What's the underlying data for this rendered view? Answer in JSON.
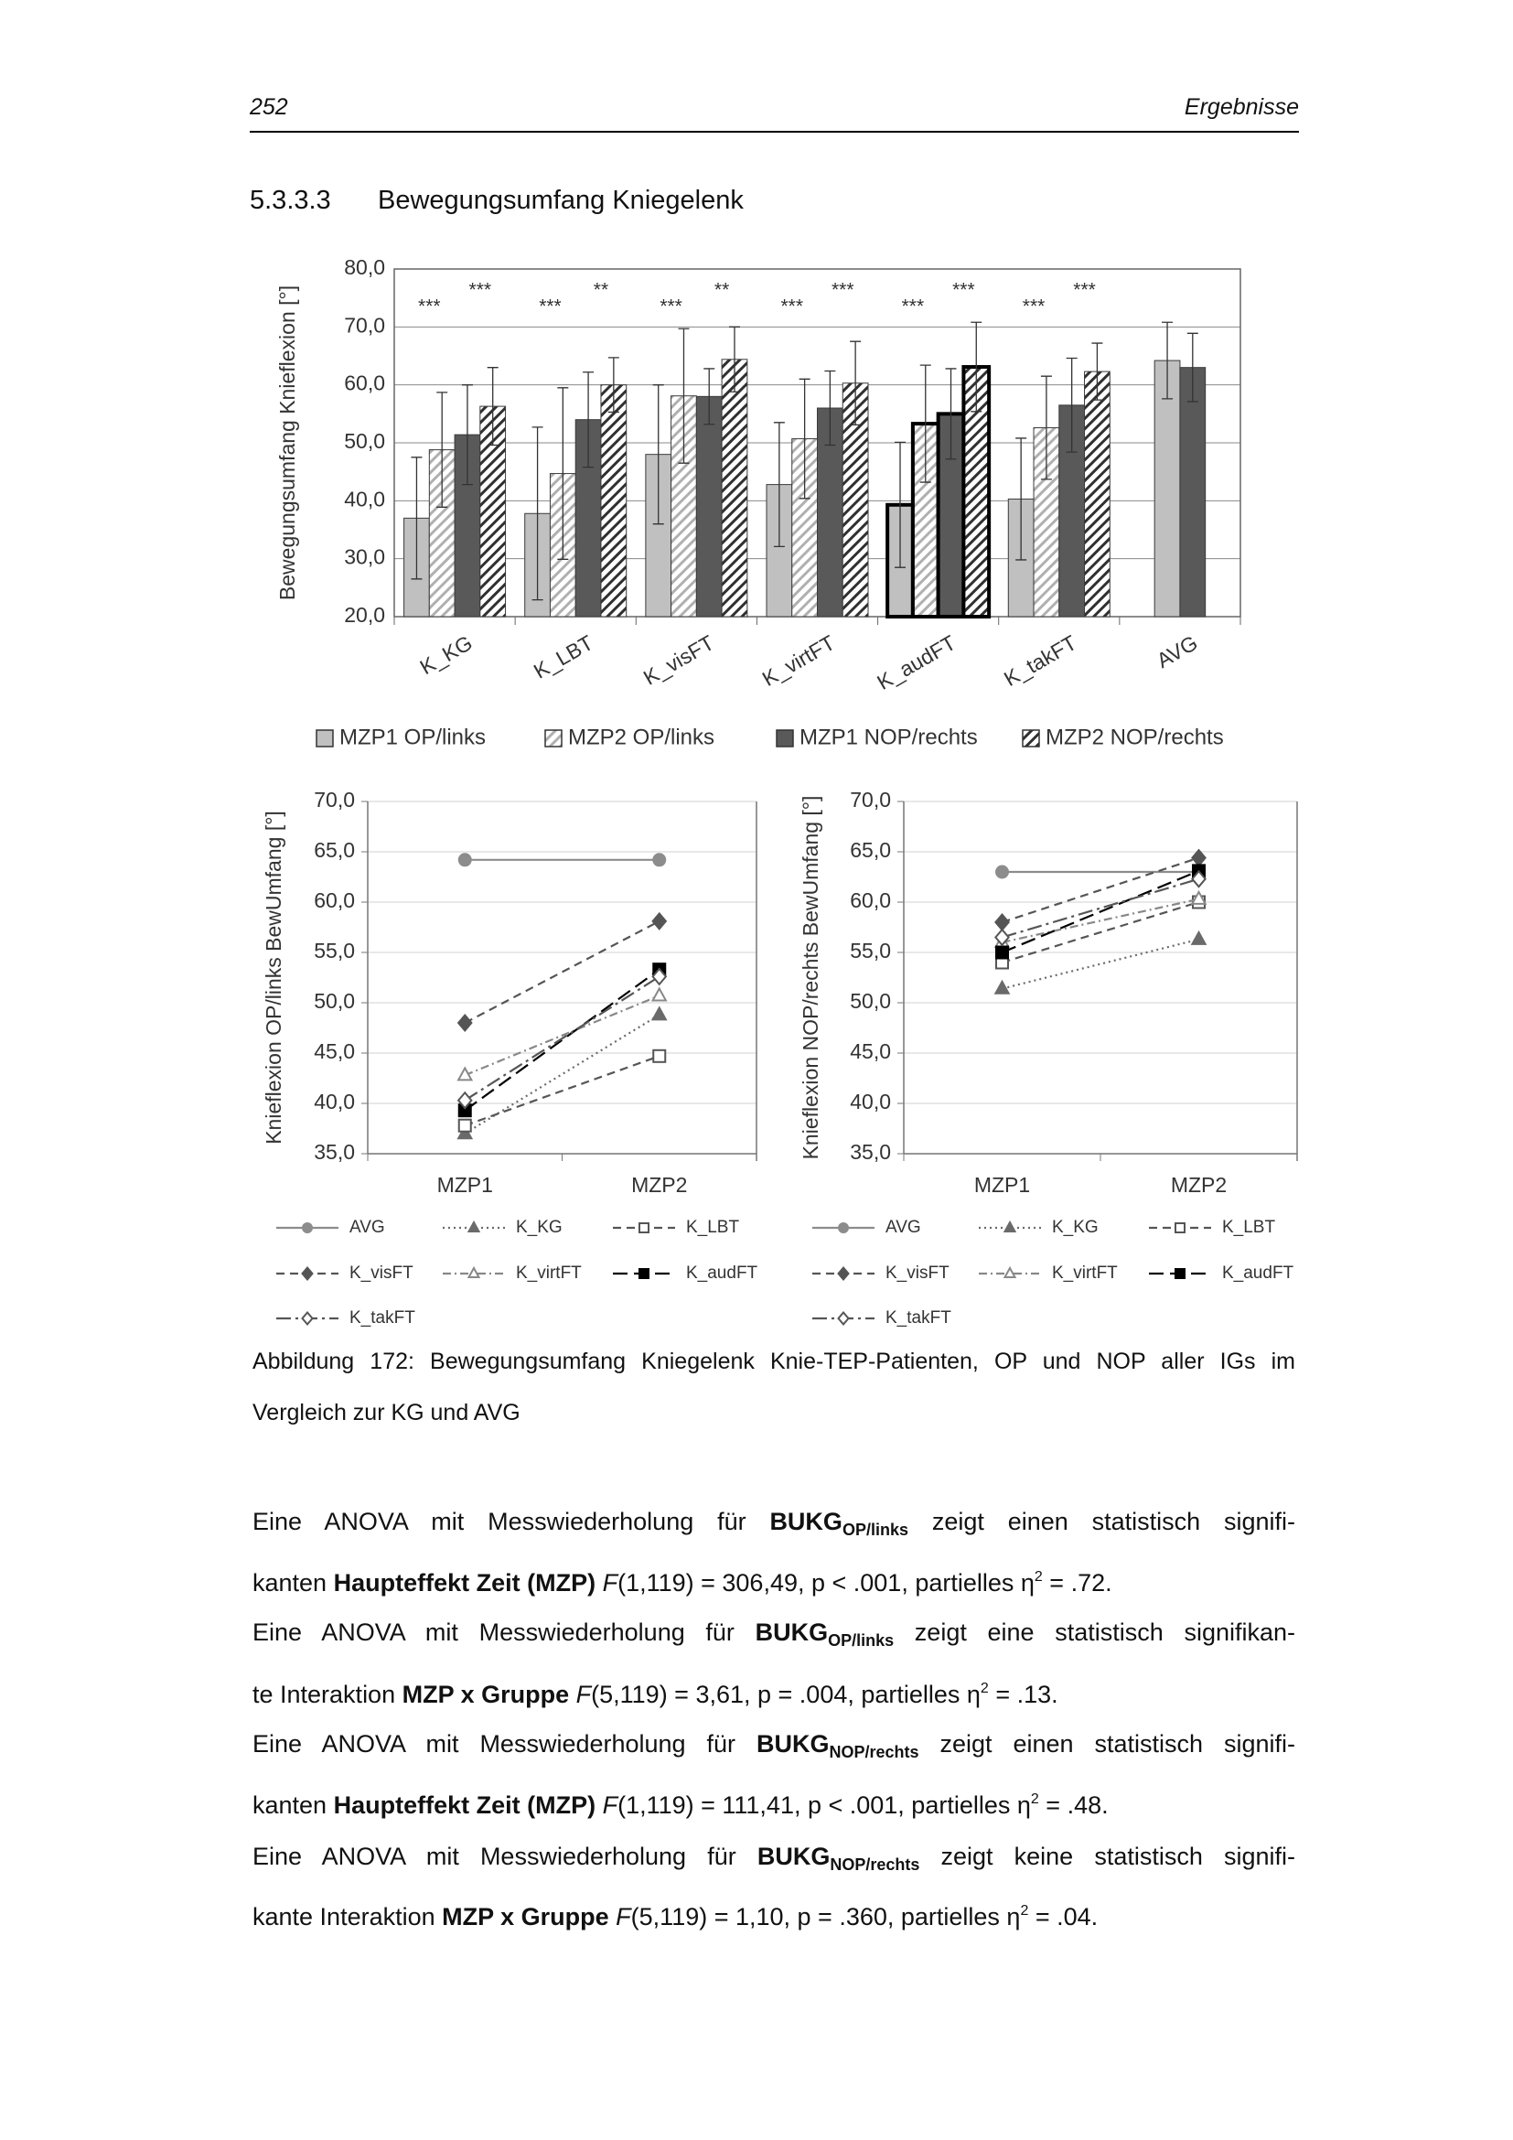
{
  "header": {
    "page_number": "252",
    "running_title": "Ergebnisse"
  },
  "section": {
    "number": "5.3.3.3",
    "title": "Bewegungsumfang Kniegelenk"
  },
  "chart_data": [
    {
      "type": "bar",
      "y_label": "Bewegungsumfang Knieflexion [°]",
      "categories": [
        "K_KG",
        "K_LBT",
        "K_visFT",
        "K_virtFT",
        "K_audFT",
        "K_takFT",
        "AVG"
      ],
      "series": [
        {
          "name": "MZP1 OP/links",
          "color": "#c0c0c0",
          "pattern": "solid",
          "values": [
            37.0,
            37.8,
            48.0,
            42.8,
            39.3,
            40.3,
            64.2
          ],
          "errors": [
            10.5,
            14.9,
            12.0,
            10.7,
            10.8,
            10.5,
            6.6
          ]
        },
        {
          "name": "MZP2 OP/links",
          "color": "#b0b0b0",
          "pattern": "hatched",
          "values": [
            48.8,
            44.7,
            58.1,
            50.7,
            53.3,
            52.6,
            null
          ],
          "errors": [
            9.9,
            14.8,
            11.6,
            10.3,
            10.1,
            8.9,
            null
          ]
        },
        {
          "name": "MZP1 NOP/rechts",
          "color": "#595959",
          "pattern": "solid",
          "values": [
            51.4,
            54.0,
            58.0,
            56.0,
            55.0,
            56.5,
            63.0
          ],
          "errors": [
            8.6,
            8.2,
            4.8,
            6.4,
            7.8,
            8.1,
            5.9
          ]
        },
        {
          "name": "MZP2 NOP/rechts",
          "color": "#303030",
          "pattern": "hatched",
          "values": [
            56.3,
            60.0,
            64.4,
            60.3,
            63.1,
            62.3,
            null
          ],
          "errors": [
            6.7,
            4.7,
            5.6,
            7.2,
            7.7,
            4.9,
            null
          ]
        }
      ],
      "significance_op": [
        "***",
        "***",
        "***",
        "***",
        "***",
        "***",
        null
      ],
      "significance_nop": [
        "***",
        "**",
        "**",
        "***",
        "***",
        "***",
        null
      ],
      "highlight_category": "K_audFT",
      "ylim": [
        20,
        80
      ],
      "yticks": [
        {
          "value": 20,
          "label": "20,0"
        },
        {
          "value": 30,
          "label": "30,0"
        },
        {
          "value": 40,
          "label": "40,0"
        },
        {
          "value": 50,
          "label": "50,0"
        },
        {
          "value": 60,
          "label": "60,0"
        },
        {
          "value": 70,
          "label": "70,0"
        },
        {
          "value": 80,
          "label": "80,0"
        }
      ],
      "grid": true,
      "legend": "bottom"
    },
    {
      "type": "line",
      "y_label": "Knieflexion OP/links BewUmfang [°]",
      "categories": [
        "MZP1",
        "MZP2"
      ],
      "series": [
        {
          "name": "AVG",
          "color": "#8c8c8c",
          "dash": "solid",
          "marker": "circle",
          "marker_filled": true,
          "values": [
            64.2,
            64.2
          ]
        },
        {
          "name": "K_KG",
          "color": "#6a6a6a",
          "dash": "dotted",
          "marker": "triangle",
          "marker_filled": true,
          "values": [
            37.0,
            48.8
          ]
        },
        {
          "name": "K_LBT",
          "color": "#555555",
          "dash": "dashed",
          "marker": "square",
          "marker_filled": false,
          "values": [
            37.8,
            44.7
          ]
        },
        {
          "name": "K_visFT",
          "color": "#555555",
          "dash": "dashed",
          "marker": "diamond",
          "marker_filled": true,
          "values": [
            48.0,
            58.1
          ]
        },
        {
          "name": "K_virtFT",
          "color": "#888888",
          "dash": "dashdot",
          "marker": "triangle",
          "marker_filled": false,
          "values": [
            42.8,
            50.7
          ]
        },
        {
          "name": "K_audFT",
          "color": "#000000",
          "dash": "longdash",
          "marker": "square",
          "marker_filled": true,
          "values": [
            39.3,
            53.3
          ]
        },
        {
          "name": "K_takFT",
          "color": "#555555",
          "dash": "longdashdot",
          "marker": "diamond",
          "marker_filled": false,
          "values": [
            40.3,
            52.6
          ]
        }
      ],
      "ylim": [
        35,
        70
      ],
      "yticks": [
        {
          "value": 35,
          "label": "35,0"
        },
        {
          "value": 40,
          "label": "40,0"
        },
        {
          "value": 45,
          "label": "45,0"
        },
        {
          "value": 50,
          "label": "50,0"
        },
        {
          "value": 55,
          "label": "55,0"
        },
        {
          "value": 60,
          "label": "60,0"
        },
        {
          "value": 65,
          "label": "65,0"
        },
        {
          "value": 70,
          "label": "70,0"
        }
      ],
      "grid": true,
      "legend": "bottom"
    },
    {
      "type": "line",
      "y_label": "Knieflexion NOP/rechts BewUmfang [°]",
      "categories": [
        "MZP1",
        "MZP2"
      ],
      "series": [
        {
          "name": "AVG",
          "color": "#8c8c8c",
          "dash": "solid",
          "marker": "circle",
          "marker_filled": true,
          "values": [
            63.0,
            63.0
          ]
        },
        {
          "name": "K_KG",
          "color": "#6a6a6a",
          "dash": "dotted",
          "marker": "triangle",
          "marker_filled": true,
          "values": [
            51.4,
            56.3
          ]
        },
        {
          "name": "K_LBT",
          "color": "#555555",
          "dash": "dashed",
          "marker": "square",
          "marker_filled": false,
          "values": [
            54.0,
            60.0
          ]
        },
        {
          "name": "K_visFT",
          "color": "#555555",
          "dash": "dashed",
          "marker": "diamond",
          "marker_filled": true,
          "values": [
            58.0,
            64.4
          ]
        },
        {
          "name": "K_virtFT",
          "color": "#888888",
          "dash": "dashdot",
          "marker": "triangle",
          "marker_filled": false,
          "values": [
            56.0,
            60.3
          ]
        },
        {
          "name": "K_audFT",
          "color": "#000000",
          "dash": "longdash",
          "marker": "square",
          "marker_filled": true,
          "values": [
            55.0,
            63.1
          ]
        },
        {
          "name": "K_takFT",
          "color": "#555555",
          "dash": "longdashdot",
          "marker": "diamond",
          "marker_filled": false,
          "values": [
            56.5,
            62.3
          ]
        }
      ],
      "ylim": [
        35,
        70
      ],
      "yticks": [
        {
          "value": 35,
          "label": "35,0"
        },
        {
          "value": 40,
          "label": "40,0"
        },
        {
          "value": 45,
          "label": "45,0"
        },
        {
          "value": 50,
          "label": "50,0"
        },
        {
          "value": 55,
          "label": "55,0"
        },
        {
          "value": 60,
          "label": "60,0"
        },
        {
          "value": 65,
          "label": "65,0"
        },
        {
          "value": 70,
          "label": "70,0"
        }
      ],
      "grid": true,
      "legend": "bottom"
    }
  ],
  "caption_lines": [
    "Abbildung 172: Bewegungsumfang Kniegelenk Knie-TEP-Patienten, OP und NOP aller IGs im",
    "Vergleich zur KG und AVG"
  ],
  "text_lines": [
    [
      [
        "Eine ANOVA mit Messwiederholung für ",
        "n"
      ],
      [
        "BUKG",
        "b"
      ],
      [
        "OP/links",
        "subb"
      ],
      [
        " zeigt einen statistisch signifi-",
        "n"
      ]
    ],
    [
      [
        "kanten ",
        "n"
      ],
      [
        "Haupteffekt Zeit (MZP) ",
        "b"
      ],
      [
        "F",
        "i"
      ],
      [
        "(1,119) = 306,49, p < .001, partielles η",
        "n"
      ],
      [
        "2",
        "sup"
      ],
      [
        " = .72.",
        "n"
      ]
    ],
    [
      [
        "Eine ANOVA mit Messwiederholung für ",
        "n"
      ],
      [
        "BUKG",
        "b"
      ],
      [
        "OP/links",
        "subb"
      ],
      [
        " zeigt eine statistisch signifikan-",
        "n"
      ]
    ],
    [
      [
        "te Interaktion ",
        "n"
      ],
      [
        "MZP x Gruppe ",
        "b"
      ],
      [
        "F",
        "i"
      ],
      [
        "(5,119) = 3,61, p = .004, partielles η",
        "n"
      ],
      [
        "2",
        "sup"
      ],
      [
        " = .13.",
        "n"
      ]
    ],
    [
      [
        "Eine ANOVA mit Messwiederholung für ",
        "n"
      ],
      [
        "BUKG",
        "b"
      ],
      [
        "NOP/rechts",
        "subb"
      ],
      [
        " zeigt einen statistisch signifi-",
        "n"
      ]
    ],
    [
      [
        "kanten ",
        "n"
      ],
      [
        "Haupteffekt Zeit (MZP) ",
        "b"
      ],
      [
        "F",
        "i"
      ],
      [
        "(1,119) = 111,41, p < .001, partielles η",
        "n"
      ],
      [
        "2",
        "sup"
      ],
      [
        " = .48.",
        "n"
      ]
    ],
    [
      [
        "Eine ANOVA mit Messwiederholung für ",
        "n"
      ],
      [
        "BUKG",
        "b"
      ],
      [
        "NOP/rechts",
        "subb"
      ],
      [
        " zeigt keine statistisch signifi-",
        "n"
      ]
    ],
    [
      [
        "kante Interaktion ",
        "n"
      ],
      [
        "MZP x Gruppe ",
        "b"
      ],
      [
        "F",
        "i"
      ],
      [
        "(5,119) = 1,10, p = .360, partielles η",
        "n"
      ],
      [
        "2",
        "sup"
      ],
      [
        " = .04.",
        "n"
      ]
    ]
  ]
}
